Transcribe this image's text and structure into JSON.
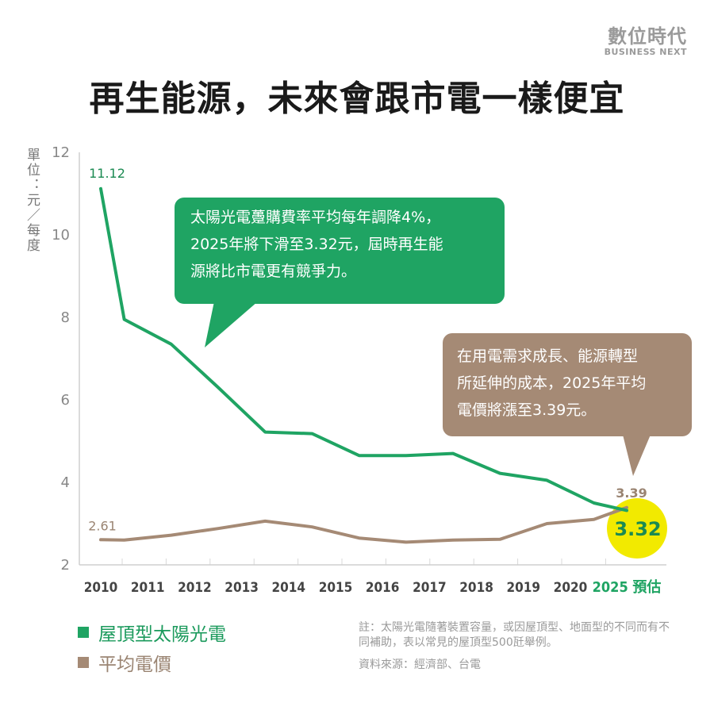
{
  "brand": {
    "name": "數位時代",
    "sub": "BUSINESS NEXT"
  },
  "title": "再生能源，未來會跟市電一樣便宜",
  "unit_label": "單位：元／每度",
  "chart_data": {
    "type": "line",
    "categories": [
      "2010",
      "2011",
      "2012",
      "2013",
      "2014",
      "2015",
      "2016",
      "2017",
      "2018",
      "2019",
      "2020",
      "2025 預估"
    ],
    "x_positions": [
      2010,
      2011,
      2012,
      2013,
      2014,
      2015,
      2016,
      2017,
      2018,
      2019,
      2020,
      2021.2
    ],
    "series": [
      {
        "name": "屋頂型太陽光電",
        "color": "#1fa463",
        "x": [
          2010,
          2010.5,
          2011.5,
          2012.5,
          2013.5,
          2014.5,
          2015.5,
          2016.5,
          2017.5,
          2018.5,
          2019.5,
          2020.5,
          2021.2
        ],
        "values": [
          11.12,
          7.95,
          7.35,
          6.3,
          5.22,
          5.18,
          4.65,
          4.65,
          4.7,
          4.22,
          4.05,
          3.5,
          3.32
        ]
      },
      {
        "name": "平均電價",
        "color": "#a58a75",
        "x": [
          2010,
          2010.5,
          2011.5,
          2012.5,
          2013.5,
          2014.5,
          2015.5,
          2016.5,
          2017.5,
          2018.5,
          2019.5,
          2020.5,
          2021.2
        ],
        "values": [
          2.61,
          2.6,
          2.72,
          2.88,
          3.06,
          2.92,
          2.65,
          2.55,
          2.6,
          2.62,
          3.0,
          3.1,
          3.39
        ]
      }
    ],
    "data_labels": [
      {
        "text": "11.12",
        "series": 0,
        "x": 2010,
        "value": 11.12
      },
      {
        "text": "2.61",
        "series": 1,
        "x": 2010,
        "value": 2.61
      },
      {
        "text": "3.39",
        "series": 1,
        "x": 2021.2,
        "value": 3.39
      },
      {
        "text": "3.32",
        "series": 0,
        "x": 2021.2,
        "value": 3.32
      }
    ],
    "y_ticks": [
      "12",
      "10",
      "8",
      "6",
      "4",
      "2"
    ],
    "ylim": [
      2,
      12
    ],
    "xlim": [
      2010,
      2021.2
    ],
    "grid": "vertical"
  },
  "callouts": {
    "green": [
      "太陽光電躉購費率平均每年調降4%，",
      "2025年將下滑至3.32元，屆時再生能",
      "源將比市電更有競爭力。"
    ],
    "brown": [
      "在用電需求成長、能源轉型",
      "所延伸的成本，2025年平均",
      "電價將漲至3.39元。"
    ]
  },
  "legend": {
    "items": [
      {
        "label": "屋頂型太陽光電",
        "color": "#1fa463"
      },
      {
        "label": "平均電價",
        "color": "#a58a75"
      }
    ]
  },
  "note": "註：太陽光電隨著裝置容量，或因屋頂型、地面型的不同而有不同補助，表以常見的屋頂型500瓩舉例。",
  "source": "資料來源：經濟部、台電",
  "colors": {
    "green": "#1fa463",
    "brown": "#a58a75",
    "highlight": "#f2ea00"
  }
}
